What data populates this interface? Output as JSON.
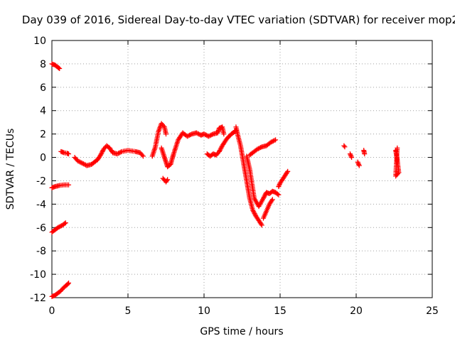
{
  "chart_data": {
    "type": "scatter",
    "title": "Day 039 of 2016, Sidereal Day-to-day VTEC variation (SDTVAR) for receiver mop2",
    "xlabel": "GPS time / hours",
    "ylabel": "SDTVAR / TECUs",
    "xlim": [
      0,
      25
    ],
    "ylim": [
      -12,
      10
    ],
    "xticks": [
      0,
      5,
      10,
      15,
      20,
      25
    ],
    "yticks": [
      -12,
      -10,
      -8,
      -6,
      -4,
      -2,
      0,
      2,
      4,
      6,
      8,
      10
    ],
    "grid": true,
    "marker": "plus",
    "color": "#ff0000",
    "segments": [
      [
        [
          0.0,
          8.0
        ],
        [
          0.2,
          7.9
        ],
        [
          0.4,
          7.7
        ],
        [
          0.5,
          7.6
        ]
      ],
      [
        [
          0.0,
          -2.6
        ],
        [
          0.2,
          -2.5
        ],
        [
          0.5,
          -2.4
        ],
        [
          0.8,
          -2.35
        ],
        [
          1.1,
          -2.35
        ]
      ],
      [
        [
          0.0,
          -6.4
        ],
        [
          0.2,
          -6.2
        ],
        [
          0.4,
          -6.0
        ],
        [
          0.7,
          -5.8
        ],
        [
          0.9,
          -5.6
        ]
      ],
      [
        [
          0.0,
          -11.9
        ],
        [
          0.2,
          -11.8
        ],
        [
          0.4,
          -11.6
        ],
        [
          0.6,
          -11.4
        ],
        [
          0.8,
          -11.1
        ],
        [
          1.0,
          -10.9
        ],
        [
          1.1,
          -10.75
        ]
      ],
      [
        [
          0.6,
          0.5
        ],
        [
          0.8,
          0.4
        ],
        [
          1.0,
          0.35
        ],
        [
          1.1,
          0.3
        ]
      ],
      [
        [
          1.5,
          0.0
        ],
        [
          1.7,
          -0.3
        ],
        [
          2.0,
          -0.5
        ],
        [
          2.3,
          -0.7
        ],
        [
          2.6,
          -0.6
        ],
        [
          2.8,
          -0.4
        ],
        [
          3.0,
          -0.2
        ],
        [
          3.2,
          0.2
        ],
        [
          3.4,
          0.7
        ],
        [
          3.6,
          1.0
        ],
        [
          3.8,
          0.8
        ],
        [
          4.0,
          0.4
        ],
        [
          4.3,
          0.3
        ],
        [
          4.6,
          0.5
        ],
        [
          5.0,
          0.6
        ],
        [
          5.5,
          0.5
        ],
        [
          5.8,
          0.4
        ],
        [
          6.0,
          0.1
        ]
      ],
      [
        [
          6.6,
          0.1
        ],
        [
          6.8,
          0.9
        ],
        [
          7.0,
          2.2
        ],
        [
          7.2,
          2.9
        ],
        [
          7.4,
          2.6
        ],
        [
          7.5,
          2.0
        ]
      ],
      [
        [
          7.3,
          -1.8
        ],
        [
          7.5,
          -2.1
        ],
        [
          7.6,
          -1.9
        ]
      ],
      [
        [
          7.2,
          0.8
        ],
        [
          7.4,
          0.0
        ],
        [
          7.6,
          -0.8
        ],
        [
          7.8,
          -0.6
        ],
        [
          8.0,
          0.3
        ],
        [
          8.3,
          1.5
        ],
        [
          8.6,
          2.1
        ],
        [
          8.9,
          1.8
        ],
        [
          9.2,
          2.0
        ],
        [
          9.5,
          2.1
        ],
        [
          9.8,
          1.9
        ],
        [
          10.0,
          2.0
        ],
        [
          10.3,
          1.8
        ],
        [
          10.6,
          2.0
        ],
        [
          10.9,
          2.1
        ],
        [
          11.0,
          2.5
        ],
        [
          11.2,
          2.6
        ],
        [
          11.3,
          2.0
        ]
      ],
      [
        [
          10.2,
          0.3
        ],
        [
          10.4,
          0.1
        ],
        [
          10.6,
          0.3
        ],
        [
          10.8,
          0.2
        ],
        [
          11.0,
          0.5
        ],
        [
          11.2,
          1.0
        ],
        [
          11.5,
          1.6
        ],
        [
          11.8,
          2.0
        ],
        [
          12.0,
          2.2
        ],
        [
          12.1,
          2.3
        ]
      ],
      [
        [
          12.1,
          2.6
        ],
        [
          12.2,
          2.0
        ],
        [
          12.4,
          1.0
        ],
        [
          12.6,
          -0.5
        ],
        [
          12.8,
          -2.0
        ],
        [
          13.0,
          -3.5
        ],
        [
          13.2,
          -4.5
        ],
        [
          13.4,
          -5.0
        ],
        [
          13.6,
          -5.4
        ],
        [
          13.8,
          -5.8
        ]
      ],
      [
        [
          12.8,
          0.1
        ],
        [
          13.0,
          -1.0
        ],
        [
          13.3,
          -3.5
        ],
        [
          13.6,
          -4.2
        ],
        [
          13.9,
          -3.5
        ],
        [
          14.1,
          -3.0
        ],
        [
          14.3,
          -3.1
        ],
        [
          14.5,
          -2.9
        ],
        [
          14.7,
          -3.0
        ],
        [
          14.9,
          -3.2
        ]
      ],
      [
        [
          13.0,
          0.2
        ],
        [
          13.2,
          0.4
        ],
        [
          13.5,
          0.7
        ],
        [
          13.8,
          0.9
        ],
        [
          14.1,
          1.0
        ],
        [
          14.4,
          1.3
        ],
        [
          14.7,
          1.5
        ]
      ],
      [
        [
          13.9,
          -5.2
        ],
        [
          14.1,
          -4.6
        ],
        [
          14.3,
          -4.0
        ],
        [
          14.5,
          -3.6
        ]
      ],
      [
        [
          14.9,
          -2.5
        ],
        [
          15.0,
          -2.2
        ],
        [
          15.1,
          -2.0
        ],
        [
          15.2,
          -1.8
        ],
        [
          15.3,
          -1.6
        ],
        [
          15.4,
          -1.4
        ],
        [
          15.5,
          -1.2
        ]
      ],
      [
        [
          19.2,
          1.0
        ],
        [
          19.25,
          0.9
        ]
      ],
      [
        [
          19.6,
          0.3
        ],
        [
          19.7,
          0.0
        ]
      ],
      [
        [
          20.1,
          -0.4
        ],
        [
          20.2,
          -0.7
        ]
      ],
      [
        [
          20.5,
          0.6
        ],
        [
          20.55,
          0.3
        ]
      ],
      [
        [
          22.6,
          0.6
        ],
        [
          22.65,
          0.2
        ],
        [
          22.7,
          -0.2
        ],
        [
          22.75,
          -0.8
        ],
        [
          22.8,
          -1.3
        ],
        [
          22.6,
          -1.6
        ],
        [
          22.7,
          0.8
        ]
      ]
    ]
  }
}
